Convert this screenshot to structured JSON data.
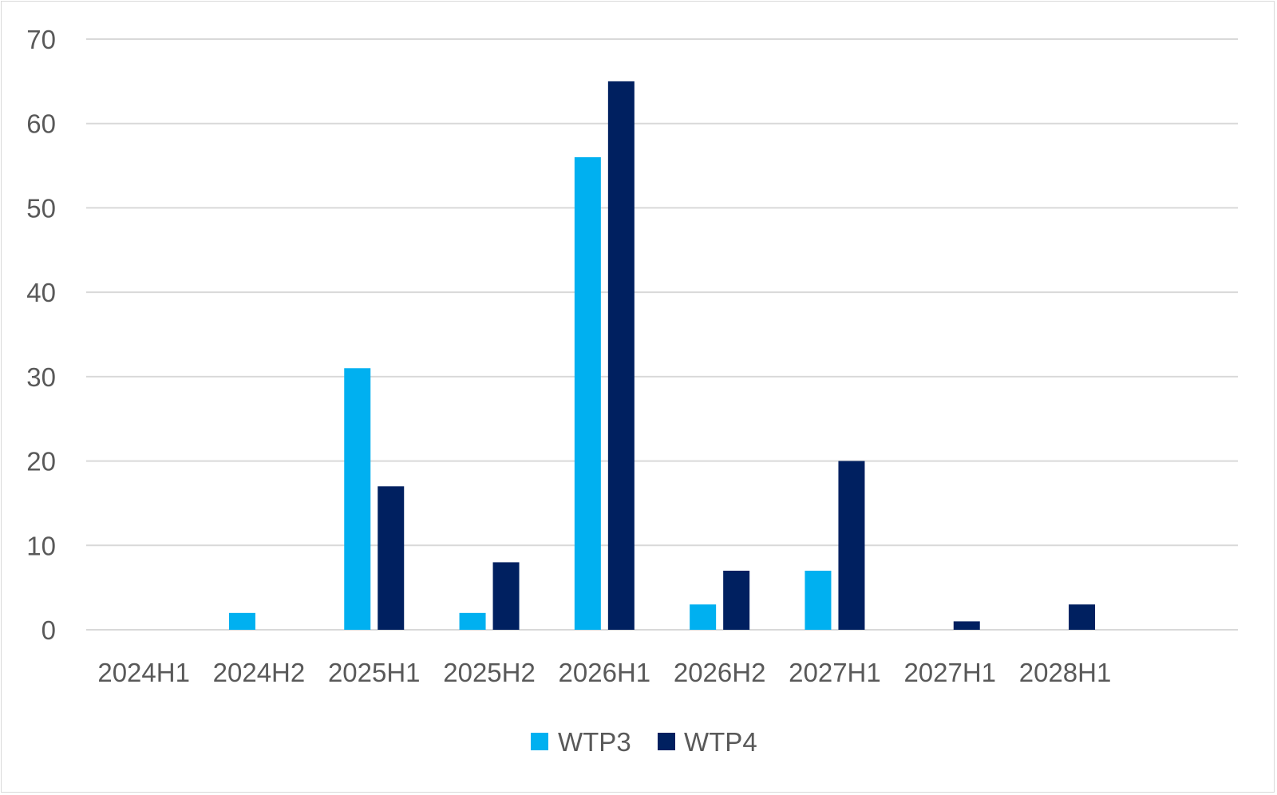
{
  "chart_data": {
    "type": "bar",
    "title": "",
    "xlabel": "",
    "ylabel": "",
    "categories": [
      "2024H1",
      "2024H2",
      "2025H1",
      "2025H2",
      "2026H1",
      "2026H2",
      "2027H1",
      "2027H1",
      "2028H1",
      ""
    ],
    "series": [
      {
        "name": "WTP3",
        "color": "#00b0f0",
        "values": [
          0,
          2,
          31,
          2,
          56,
          3,
          7,
          0,
          0,
          0
        ]
      },
      {
        "name": "WTP4",
        "color": "#002060",
        "values": [
          0,
          0,
          17,
          8,
          65,
          7,
          20,
          1,
          3,
          0
        ]
      }
    ],
    "ylim": [
      0,
      70
    ],
    "yticks": [
      0,
      10,
      20,
      30,
      40,
      50,
      60,
      70
    ],
    "grid": true,
    "legend_position": "bottom",
    "gridline_color": "#d9d9d9",
    "text_color": "#595959"
  }
}
